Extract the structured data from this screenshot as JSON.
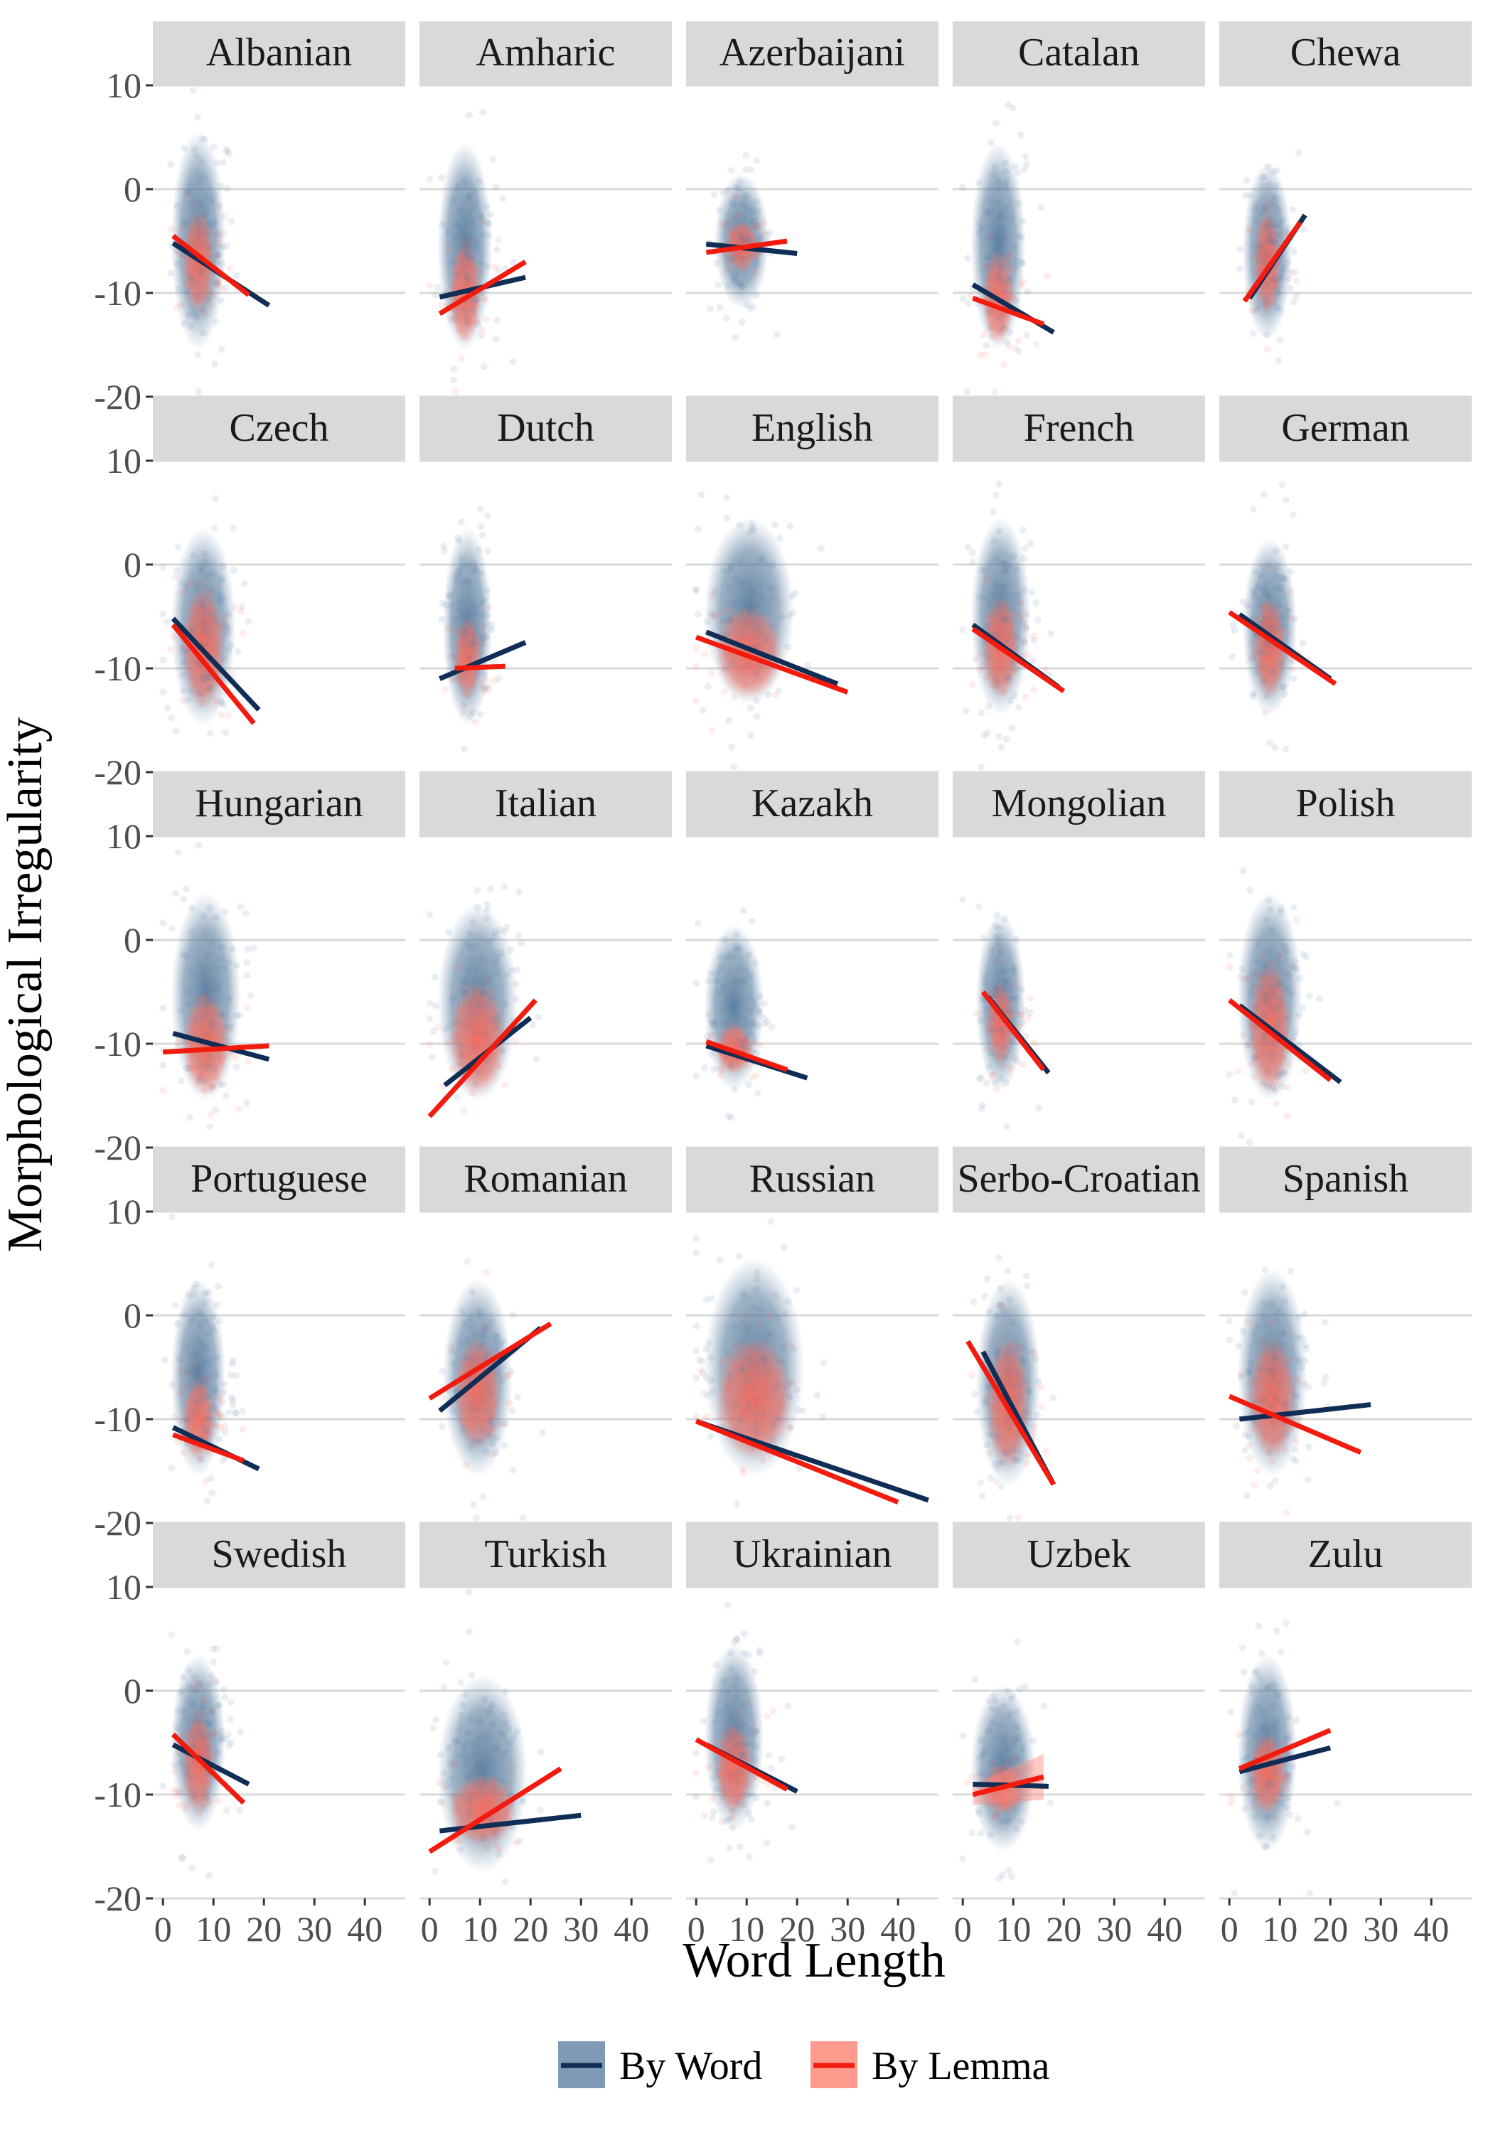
{
  "chart_data": {
    "type": "scatter",
    "xlabel": "Word Length",
    "ylabel": "Morphological Irregularity",
    "xlim": [
      -2,
      48
    ],
    "ylim": [
      -20,
      10
    ],
    "xticks": [
      0,
      10,
      20,
      30,
      40
    ],
    "yticks": [
      10,
      0,
      -10,
      -20
    ],
    "xtick_labels": [
      "0",
      "10",
      "20",
      "30",
      "40"
    ],
    "ytick_labels": [
      "10",
      "0",
      "-10",
      "-20"
    ],
    "grid": "horizontal",
    "legend": {
      "position": "bottom",
      "entries": [
        {
          "label": "By Word",
          "color": "#0f2d55"
        },
        {
          "label": "By Lemma",
          "color": "#f21b0e"
        }
      ]
    },
    "colors": {
      "by_word": "#0f2d55",
      "by_lemma": "#f21b0e",
      "word_points": "#4e7397",
      "lemma_points": "#ff7363",
      "strip_bg": "#d9d9d9",
      "grid": "#d9d9d9"
    },
    "panels": [
      {
        "language": "Albanian",
        "cloud": {
          "x": [
            3,
            13
          ],
          "y": [
            -15,
            5
          ],
          "cx": 8,
          "wc": [
            3,
            11
          ],
          "lemma_y": [
            -12,
            -2
          ]
        },
        "word_line": [
          [
            2,
            -5.2
          ],
          [
            21,
            -11.2
          ]
        ],
        "lemma_line": [
          [
            2,
            -4.5
          ],
          [
            17,
            -10.2
          ]
        ]
      },
      {
        "language": "Amharic",
        "cloud": {
          "x": [
            3,
            13
          ],
          "y": [
            -15,
            4
          ],
          "cx": 8,
          "wc": [
            3,
            11
          ],
          "lemma_y": [
            -15,
            -5
          ]
        },
        "word_line": [
          [
            2,
            -10.4
          ],
          [
            19,
            -8.5
          ]
        ],
        "lemma_line": [
          [
            2,
            -12
          ],
          [
            19,
            -7
          ]
        ]
      },
      {
        "language": "Azerbaijani",
        "cloud": {
          "x": [
            4,
            14
          ],
          "y": [
            -11,
            1
          ],
          "cx": 9,
          "wc": [
            5,
            13
          ],
          "lemma_y": [
            -8,
            -3
          ]
        },
        "word_line": [
          [
            2,
            -5.3
          ],
          [
            20,
            -6.2
          ]
        ],
        "lemma_line": [
          [
            2,
            -6.1
          ],
          [
            18,
            -5
          ]
        ]
      },
      {
        "language": "Catalan",
        "cloud": {
          "x": [
            3,
            13
          ],
          "y": [
            -15,
            4
          ],
          "cx": 8,
          "wc": [
            3,
            11
          ],
          "lemma_y": [
            -15,
            -6
          ]
        },
        "word_line": [
          [
            2,
            -9.2
          ],
          [
            18,
            -13.8
          ]
        ],
        "lemma_line": [
          [
            2,
            -10.5
          ],
          [
            16,
            -13
          ]
        ]
      },
      {
        "language": "Chewa",
        "cloud": {
          "x": [
            4,
            13
          ],
          "y": [
            -14,
            2
          ],
          "cx": 8,
          "wc": [
            4,
            11
          ],
          "lemma_y": [
            -12,
            -2
          ]
        },
        "word_line": [
          [
            4,
            -10.5
          ],
          [
            15,
            -2.5
          ]
        ],
        "lemma_line": [
          [
            3,
            -10.8
          ],
          [
            14,
            -3.2
          ]
        ]
      },
      {
        "language": "Czech",
        "cloud": {
          "x": [
            3,
            15
          ],
          "y": [
            -15,
            3
          ],
          "cx": 8,
          "wc": [
            3,
            13
          ],
          "lemma_y": [
            -14,
            -2
          ]
        },
        "word_line": [
          [
            2,
            -5.2
          ],
          [
            19,
            -14
          ]
        ],
        "lemma_line": [
          [
            2,
            -5.8
          ],
          [
            18,
            -15.3
          ]
        ]
      },
      {
        "language": "Dutch",
        "cloud": {
          "x": [
            4,
            12
          ],
          "y": [
            -15,
            3
          ],
          "cx": 8,
          "wc": [
            4,
            11
          ],
          "lemma_y": [
            -13,
            -5
          ]
        },
        "word_line": [
          [
            2,
            -11
          ],
          [
            19,
            -7.5
          ]
        ],
        "lemma_line": [
          [
            5,
            -10
          ],
          [
            15,
            -9.8
          ]
        ]
      },
      {
        "language": "English",
        "cloud": {
          "x": [
            2,
            20
          ],
          "y": [
            -13,
            4
          ],
          "cx": 10,
          "wc": [
            3,
            18
          ],
          "lemma_y": [
            -13,
            -4
          ]
        },
        "word_line": [
          [
            2,
            -6.5
          ],
          [
            28,
            -11.5
          ]
        ],
        "lemma_line": [
          [
            0,
            -7
          ],
          [
            30,
            -12.3
          ]
        ]
      },
      {
        "language": "French",
        "cloud": {
          "x": [
            3,
            14
          ],
          "y": [
            -14,
            4
          ],
          "cx": 8,
          "wc": [
            3,
            12
          ],
          "lemma_y": [
            -13,
            -3
          ]
        },
        "word_line": [
          [
            2,
            -5.8
          ],
          [
            19,
            -11.8
          ]
        ],
        "lemma_line": [
          [
            2,
            -6.2
          ],
          [
            20,
            -12.2
          ]
        ]
      },
      {
        "language": "German",
        "cloud": {
          "x": [
            4,
            13
          ],
          "y": [
            -14,
            2
          ],
          "cx": 8,
          "wc": [
            4,
            12
          ],
          "lemma_y": [
            -13,
            -3
          ]
        },
        "word_line": [
          [
            2,
            -4.8
          ],
          [
            20,
            -11
          ]
        ],
        "lemma_line": [
          [
            0,
            -4.6
          ],
          [
            21,
            -11.5
          ]
        ]
      },
      {
        "language": "Hungarian",
        "cloud": {
          "x": [
            3,
            16
          ],
          "y": [
            -15,
            4
          ],
          "cx": 9,
          "wc": [
            3,
            14
          ],
          "lemma_y": [
            -15,
            -5
          ]
        },
        "word_line": [
          [
            2,
            -9
          ],
          [
            21,
            -11.5
          ]
        ],
        "lemma_line": [
          [
            0,
            -10.8
          ],
          [
            21,
            -10.2
          ]
        ]
      },
      {
        "language": "Italian",
        "cloud": {
          "x": [
            3,
            17
          ],
          "y": [
            -15,
            3
          ],
          "cx": 9,
          "wc": [
            3,
            16
          ],
          "lemma_y": [
            -15,
            -4
          ]
        },
        "word_line": [
          [
            3,
            -14
          ],
          [
            20,
            -7.5
          ]
        ],
        "lemma_line": [
          [
            0,
            -17
          ],
          [
            21,
            -5.8
          ]
        ]
      },
      {
        "language": "Kazakh",
        "cloud": {
          "x": [
            3,
            13
          ],
          "y": [
            -14,
            1
          ],
          "cx": 8,
          "wc": [
            3,
            12
          ],
          "lemma_y": [
            -13,
            -8
          ]
        },
        "word_line": [
          [
            2,
            -10.2
          ],
          [
            22,
            -13.3
          ]
        ],
        "lemma_line": [
          [
            2,
            -9.8
          ],
          [
            18,
            -12.5
          ]
        ]
      },
      {
        "language": "Mongolian",
        "cloud": {
          "x": [
            4,
            12
          ],
          "y": [
            -14,
            2
          ],
          "cx": 8,
          "wc": [
            4,
            11
          ],
          "lemma_y": [
            -12,
            -4
          ]
        },
        "word_line": [
          [
            5,
            -5.5
          ],
          [
            17,
            -12.8
          ]
        ],
        "lemma_line": [
          [
            4,
            -5
          ],
          [
            16,
            -12.5
          ]
        ]
      },
      {
        "language": "Polish",
        "cloud": {
          "x": [
            3,
            15
          ],
          "y": [
            -15,
            4
          ],
          "cx": 8,
          "wc": [
            3,
            13
          ],
          "lemma_y": [
            -15,
            -2
          ]
        },
        "word_line": [
          [
            2,
            -6.3
          ],
          [
            22,
            -13.7
          ]
        ],
        "lemma_line": [
          [
            0,
            -5.8
          ],
          [
            20,
            -13.5
          ]
        ]
      },
      {
        "language": "Portuguese",
        "cloud": {
          "x": [
            3,
            13
          ],
          "y": [
            -15,
            3
          ],
          "cx": 8,
          "wc": [
            3,
            11
          ],
          "lemma_y": [
            -14,
            -6
          ]
        },
        "word_line": [
          [
            2,
            -10.8
          ],
          [
            19,
            -14.8
          ]
        ],
        "lemma_line": [
          [
            2,
            -11.5
          ],
          [
            16,
            -14
          ]
        ]
      },
      {
        "language": "Romanian",
        "cloud": {
          "x": [
            4,
            16
          ],
          "y": [
            -15,
            3
          ],
          "cx": 10,
          "wc": [
            4,
            15
          ],
          "lemma_y": [
            -13,
            -2
          ]
        },
        "word_line": [
          [
            2,
            -9.2
          ],
          [
            22,
            -1.2
          ]
        ],
        "lemma_line": [
          [
            0,
            -8
          ],
          [
            24,
            -0.8
          ]
        ]
      },
      {
        "language": "Russian",
        "cloud": {
          "x": [
            3,
            22
          ],
          "y": [
            -15,
            5
          ],
          "cx": 11,
          "wc": [
            3,
            20
          ],
          "lemma_y": [
            -14,
            -2
          ]
        },
        "word_line": [
          [
            0,
            -10.2
          ],
          [
            46,
            -17.8
          ]
        ],
        "lemma_line": [
          [
            0,
            -10.2
          ],
          [
            40,
            -18
          ]
        ]
      },
      {
        "language": "Serbo-Croatian",
        "cloud": {
          "x": [
            4,
            15
          ],
          "y": [
            -16,
            3
          ],
          "cx": 9,
          "wc": [
            4,
            14
          ],
          "lemma_y": [
            -15,
            -2
          ]
        },
        "word_line": [
          [
            4,
            -3.5
          ],
          [
            18,
            -16.3
          ]
        ],
        "lemma_line": [
          [
            1,
            -2.5
          ],
          [
            18,
            -16.3
          ]
        ]
      },
      {
        "language": "Spanish",
        "cloud": {
          "x": [
            3,
            16
          ],
          "y": [
            -15,
            4
          ],
          "cx": 9,
          "wc": [
            3,
            14
          ],
          "lemma_y": [
            -14,
            -2
          ]
        },
        "word_line": [
          [
            2,
            -10
          ],
          [
            28,
            -8.6
          ]
        ],
        "lemma_line": [
          [
            0,
            -7.8
          ],
          [
            26,
            -13.2
          ]
        ]
      },
      {
        "language": "Swedish",
        "cloud": {
          "x": [
            3,
            13
          ],
          "y": [
            -13,
            3
          ],
          "cx": 8,
          "wc": [
            3,
            11
          ],
          "lemma_y": [
            -12,
            -2
          ]
        },
        "word_line": [
          [
            2,
            -5.2
          ],
          [
            17,
            -9
          ]
        ],
        "lemma_line": [
          [
            2,
            -4.2
          ],
          [
            16,
            -10.8
          ]
        ]
      },
      {
        "language": "Turkish",
        "cloud": {
          "x": [
            3,
            20
          ],
          "y": [
            -17,
            1
          ],
          "cx": 10,
          "wc": [
            3,
            18
          ],
          "lemma_y": [
            -15,
            -8
          ]
        },
        "word_line": [
          [
            2,
            -13.5
          ],
          [
            30,
            -12
          ]
        ],
        "lemma_line": [
          [
            0,
            -15.5
          ],
          [
            26,
            -7.5
          ]
        ]
      },
      {
        "language": "Ukrainian",
        "cloud": {
          "x": [
            3,
            14
          ],
          "y": [
            -13,
            4
          ],
          "cx": 8,
          "wc": [
            3,
            12
          ],
          "lemma_y": [
            -12,
            -3
          ]
        },
        "word_line": [
          [
            2,
            -5.2
          ],
          [
            20,
            -9.7
          ]
        ],
        "lemma_line": [
          [
            0,
            -4.7
          ],
          [
            18,
            -9.5
          ]
        ]
      },
      {
        "language": "Uzbek",
        "cloud": {
          "x": [
            3,
            14
          ],
          "y": [
            -15,
            0
          ],
          "cx": 8,
          "wc": [
            3,
            13
          ],
          "lemma_y": [
            -12,
            -7
          ]
        },
        "word_line": [
          [
            2,
            -9
          ],
          [
            17,
            -9.2
          ]
        ],
        "lemma_line": [
          [
            2,
            -10
          ],
          [
            16,
            -8.3
          ]
        ],
        "band": true
      },
      {
        "language": "Zulu",
        "cloud": {
          "x": [
            3,
            13
          ],
          "y": [
            -15,
            3
          ],
          "cx": 8,
          "wc": [
            3,
            12
          ],
          "lemma_y": [
            -12,
            -4
          ]
        },
        "word_line": [
          [
            2,
            -7.8
          ],
          [
            20,
            -5.5
          ]
        ],
        "lemma_line": [
          [
            2,
            -7.5
          ],
          [
            20,
            -3.8
          ]
        ]
      }
    ]
  }
}
